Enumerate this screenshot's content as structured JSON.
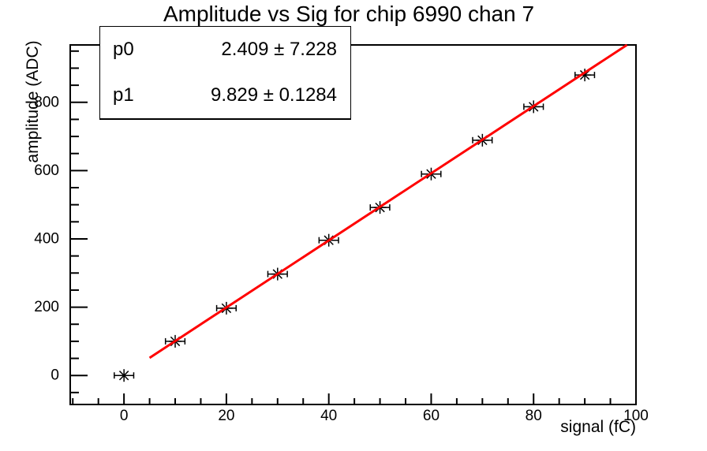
{
  "stats_box": {
    "rows": [
      {
        "name": "p0",
        "value": "2.409 ± 7.228"
      },
      {
        "name": "p1",
        "value": "9.829 ± 0.1284"
      }
    ]
  },
  "chart_data": {
    "type": "scatter",
    "title": "Amplitude vs Sig for chip 6990 chan 7",
    "xlabel": "signal (fC)",
    "ylabel": "amplitude (ADC)",
    "points": {
      "x": [
        0,
        10,
        20,
        30,
        40,
        50,
        60,
        70,
        80,
        90
      ],
      "y": [
        0,
        100,
        197,
        297,
        396,
        492,
        590,
        689,
        787,
        880
      ],
      "xerr": 1.9
    },
    "fit": {
      "p0": 2.409,
      "p0_err": 7.228,
      "p1": 9.829,
      "p1_err": 0.1284,
      "x_start": 5,
      "line_color": "#ff0000",
      "line_width": 3
    },
    "axes": {
      "xlim": [
        -10.5,
        100
      ],
      "ylim": [
        -85,
        968
      ],
      "xticks": [
        0,
        20,
        40,
        60,
        80,
        100
      ],
      "yticks": [
        0,
        200,
        400,
        600,
        800
      ],
      "x_minor_step": 5,
      "y_minor_step": 50,
      "grid": false,
      "ticks_inside": true,
      "tick_label_size": 19
    },
    "marker": {
      "style": "asterisk",
      "color": "#000000"
    },
    "frame_color": "#000000",
    "background_color": "#ffffff",
    "legend_position": "none"
  }
}
